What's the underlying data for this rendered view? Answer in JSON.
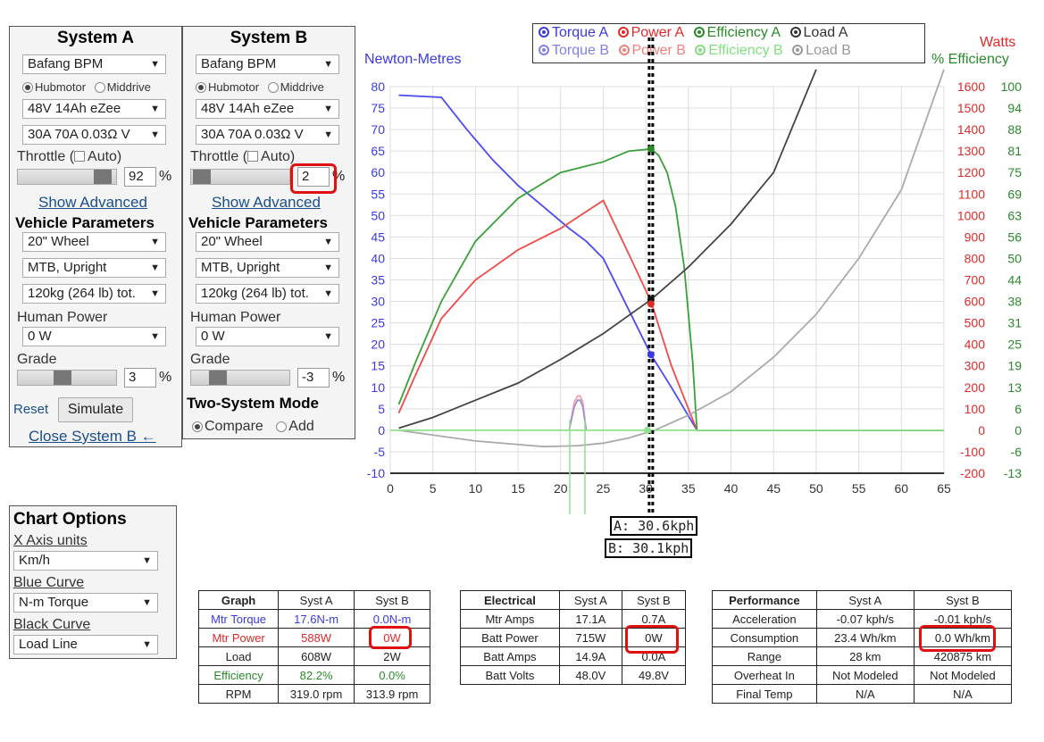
{
  "systemA": {
    "title": "System A",
    "motor": "Bafang BPM",
    "radio_hub": "Hubmotor",
    "radio_mid": "Middrive",
    "battery": "48V 14Ah eZee",
    "controller": "30A 70A 0.03Ω V",
    "throttle_label": "Throttle (",
    "auto_label": "Auto)",
    "throttle_value": "92",
    "throttle_fraction": 0.92,
    "pct": "%",
    "show_advanced": "Show Advanced",
    "vehicle_heading": "Vehicle Parameters",
    "wheel": "20\"  Wheel",
    "bike_type": "MTB, Upright",
    "weight": "120kg (264 lb) tot.",
    "human_power_label": "Human Power",
    "human_power": "0 W",
    "grade_label": "Grade",
    "grade_value": "3",
    "reset": "Reset",
    "simulate": "Simulate",
    "close_b": "Close System B ←"
  },
  "systemB": {
    "title": "System B",
    "motor": "Bafang BPM",
    "radio_hub": "Hubmotor",
    "radio_mid": "Middrive",
    "battery": "48V 14Ah eZee",
    "controller": "30A 70A 0.03Ω V",
    "throttle_label": "Throttle (",
    "auto_label": "Auto)",
    "throttle_value": "2",
    "throttle_fraction": 0.02,
    "pct": "%",
    "show_advanced": "Show Advanced",
    "vehicle_heading": "Vehicle Parameters",
    "wheel": "20\"  Wheel",
    "bike_type": "MTB, Upright",
    "weight": "120kg (264 lb) tot.",
    "human_power_label": "Human Power",
    "human_power": "0 W",
    "grade_label": "Grade",
    "grade_value": "-3",
    "mode_heading": "Two-System Mode",
    "compare": "Compare",
    "add": "Add"
  },
  "chart_options": {
    "title": "Chart Options",
    "x_axis_label": "X Axis units",
    "x_axis_value": "Km/h",
    "blue_label": "Blue Curve",
    "blue_value": "N-m Torque",
    "black_label": "Black Curve",
    "black_value": "Load Line"
  },
  "legend": {
    "torque_a": "Torque A",
    "power_a": "Power A",
    "efficiency_a": "Efficiency A",
    "load_a": "Load A",
    "torque_b": "Torque B",
    "power_b": "Power B",
    "efficiency_b": "Efficiency B",
    "load_b": "Load B"
  },
  "axis_titles": {
    "left": "Newton-Metres",
    "right_watts": "Watts",
    "right_eff": "% Efficiency"
  },
  "speed_readouts": {
    "a": "A: 30.6kph",
    "b": "B: 30.1kph"
  },
  "colors": {
    "torque": "#4a4af0",
    "power": "#f04a4a",
    "efficiency": "#3a9a3a",
    "load": "#333333",
    "highlight": "#e01010"
  },
  "chart_data": {
    "type": "line",
    "xlim": [
      0,
      65
    ],
    "xticks": [
      "0",
      "5",
      "10",
      "15",
      "20",
      "25",
      "30",
      "35",
      "40",
      "45",
      "50",
      "55",
      "60",
      "65"
    ],
    "left_ylim": [
      -10,
      80
    ],
    "left_ticks": [
      "80",
      "75",
      "70",
      "65",
      "60",
      "55",
      "50",
      "45",
      "40",
      "35",
      "30",
      "25",
      "20",
      "15",
      "10",
      "5",
      "0",
      "-5",
      "-10"
    ],
    "watts_ticks": [
      "1600",
      "1500",
      "1400",
      "1300",
      "1200",
      "1100",
      "1000",
      "900",
      "800",
      "700",
      "600",
      "500",
      "400",
      "300",
      "200",
      "100",
      "0",
      "-100",
      "-200"
    ],
    "eff_ticks": [
      "100",
      "94",
      "88",
      "81",
      "75",
      "69",
      "63",
      "56",
      "50",
      "44",
      "38",
      "31",
      "25",
      "19",
      "13",
      "6",
      "0",
      "-6",
      "-13"
    ],
    "marker_x": 30.6,
    "series": [
      {
        "key": "torque_a",
        "x": [
          1,
          6,
          9,
          12,
          15,
          18,
          21,
          23,
          25,
          28,
          30.6,
          33,
          36,
          65
        ],
        "y": [
          78,
          77.5,
          70,
          63,
          57,
          52,
          47,
          44,
          40,
          28,
          17.6,
          10,
          0,
          0
        ]
      },
      {
        "key": "power_a",
        "x": [
          1,
          3,
          6,
          10,
          15,
          20,
          25,
          28,
          30.6,
          33,
          36,
          65
        ],
        "y": [
          4,
          13,
          26,
          35,
          42,
          47,
          53.5,
          41,
          30,
          15,
          0,
          0
        ]
      },
      {
        "key": "efficiency_a",
        "x": [
          1,
          3,
          6,
          10,
          15,
          20,
          25,
          28,
          30.6,
          31.5,
          32.5,
          33.5,
          34.5,
          35.5,
          36,
          65
        ],
        "y": [
          6,
          16,
          30,
          44,
          54,
          60,
          62.5,
          65,
          65.5,
          64,
          60,
          52,
          38,
          16,
          0,
          0
        ]
      },
      {
        "key": "load_a",
        "x": [
          1,
          5,
          10,
          15,
          20,
          25,
          30.6,
          35,
          40,
          45,
          50
        ],
        "y": [
          0.5,
          3,
          7,
          11,
          16.5,
          22.5,
          30.4,
          38,
          48,
          60,
          84
        ]
      },
      {
        "key": "load_b",
        "x": [
          1,
          10,
          18,
          22,
          25,
          28,
          31,
          35,
          40,
          45,
          50,
          55,
          60,
          65
        ],
        "y": [
          0,
          -2.5,
          -3.8,
          -3.6,
          -3,
          -1.8,
          0,
          3.5,
          9,
          17,
          27,
          40,
          56,
          84
        ]
      },
      {
        "key": "power_b",
        "x": [
          21,
          21.6,
          22,
          22.3,
          22.6,
          23
        ],
        "y": [
          0,
          6.5,
          8,
          8,
          6.5,
          0
        ]
      },
      {
        "key": "torque_b",
        "x": [
          21,
          21.6,
          22,
          22.3,
          22.6,
          23
        ],
        "y": [
          0,
          5.5,
          7,
          7,
          5.5,
          0
        ]
      },
      {
        "key": "efficiency_b_low",
        "x": [
          0,
          65
        ],
        "y": [
          0,
          0
        ]
      }
    ]
  },
  "graph_table": {
    "headers": [
      "Graph",
      "Syst A",
      "Syst B"
    ],
    "rows": [
      [
        "Mtr Torque",
        "17.6N-m",
        "0.0N-m"
      ],
      [
        "Mtr Power",
        "588W",
        "0W"
      ],
      [
        "Load",
        "608W",
        "2W"
      ],
      [
        "Efficiency",
        "82.2%",
        "0.0%"
      ],
      [
        "RPM",
        "319.0 rpm",
        "313.9 rpm"
      ]
    ]
  },
  "electrical_table": {
    "headers": [
      "Electrical",
      "Syst A",
      "Syst B"
    ],
    "rows": [
      [
        "Mtr Amps",
        "17.1A",
        "0.7A"
      ],
      [
        "Batt Power",
        "715W",
        "0W"
      ],
      [
        "Batt Amps",
        "14.9A",
        "0.0A"
      ],
      [
        "Batt Volts",
        "48.0V",
        "49.8V"
      ]
    ]
  },
  "performance_table": {
    "headers": [
      "Performance",
      "Syst A",
      "Syst B"
    ],
    "rows": [
      [
        "Acceleration",
        "-0.07 kph/s",
        "-0.01 kph/s"
      ],
      [
        "Consumption",
        "23.4 Wh/km",
        "0.0 Wh/km"
      ],
      [
        "Range",
        "28 km",
        "420875 km"
      ],
      [
        "Overheat In",
        "Not Modeled",
        "Not Modeled"
      ],
      [
        "Final Temp",
        "N/A",
        "N/A"
      ]
    ]
  }
}
